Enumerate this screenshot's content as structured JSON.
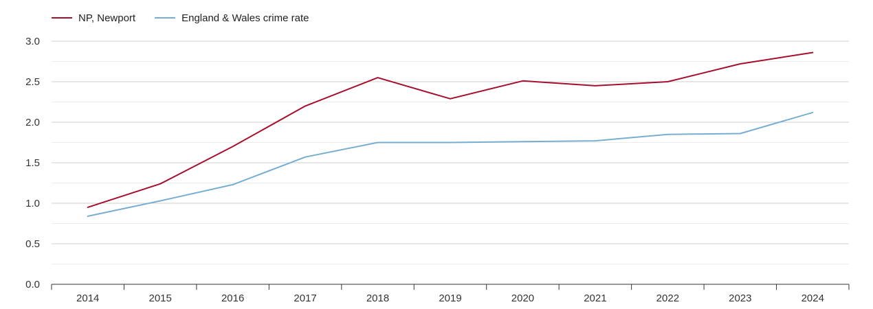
{
  "chart_data": {
    "type": "line",
    "title": "",
    "xlabel": "",
    "ylabel": "",
    "categories": [
      "2014",
      "2015",
      "2016",
      "2017",
      "2018",
      "2019",
      "2020",
      "2021",
      "2022",
      "2023",
      "2024"
    ],
    "series": [
      {
        "name": "NP, Newport",
        "color": "#a50f2d",
        "values": [
          0.95,
          1.24,
          1.7,
          2.2,
          2.55,
          2.29,
          2.51,
          2.45,
          2.5,
          2.72,
          2.86
        ]
      },
      {
        "name": "England & Wales crime rate",
        "color": "#76aed2",
        "values": [
          0.84,
          1.03,
          1.23,
          1.57,
          1.75,
          1.75,
          1.76,
          1.77,
          1.85,
          1.86,
          2.12
        ]
      }
    ],
    "ylim": [
      0,
      3.0
    ],
    "yticks": [
      "0.0",
      "0.5",
      "1.0",
      "1.5",
      "2.0",
      "2.5",
      "3.0"
    ],
    "grid": true,
    "legend_position": "top-left"
  }
}
